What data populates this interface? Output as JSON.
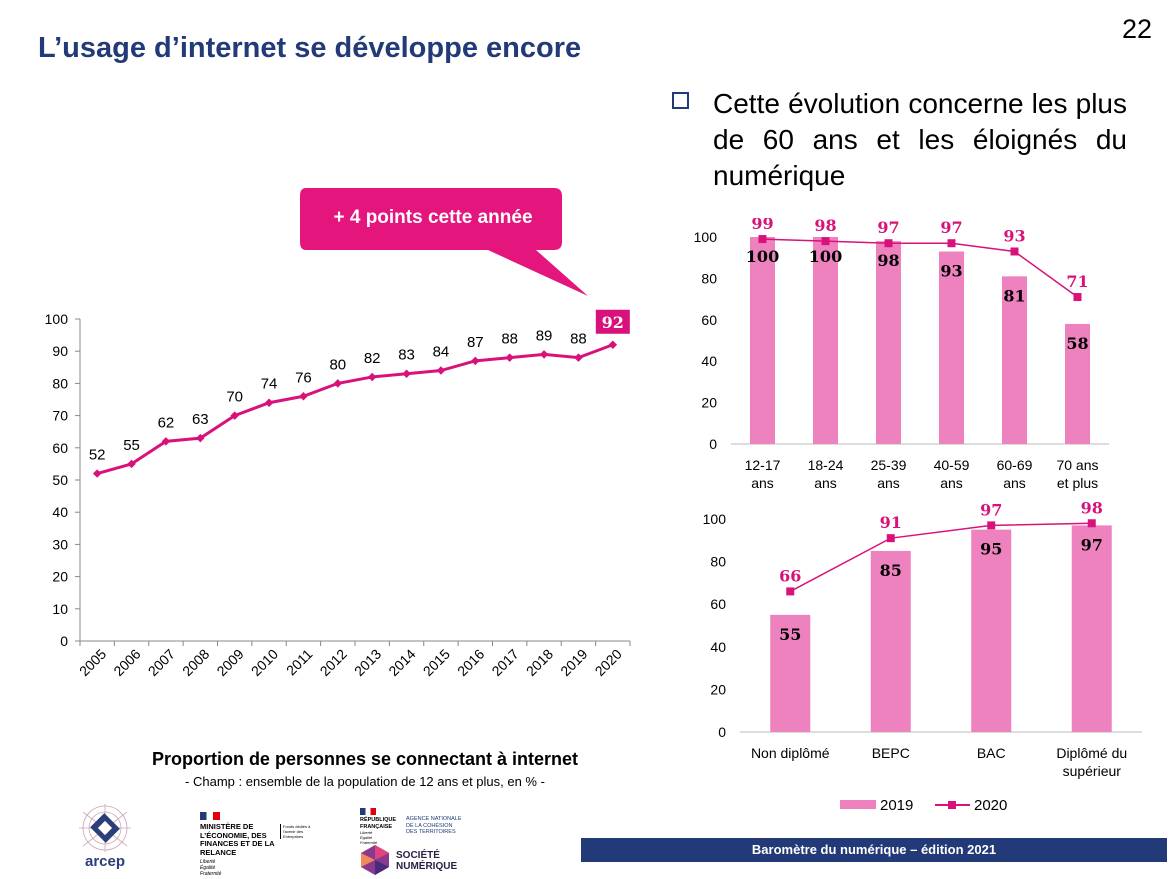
{
  "page": {
    "title": "L’usage d’internet se développe encore",
    "number": "22",
    "bullet": "Cette évolution concerne les plus de 60 ans et les éloignés du numérique",
    "callout": "+ 4 points cette année",
    "caption": "Proportion de personnes se connectant à internet",
    "caption_sub": "- Champ : ensemble de la population de 12 ans et plus, en % -",
    "footer": "Baromètre  du numérique – édition 2021"
  },
  "colors": {
    "title": "#233a78",
    "magenta": "#d8127a",
    "pink_bar": "#ee82bf",
    "axis": "#595959"
  },
  "logos": {
    "arcep": "arcep",
    "ministere": "MINISTÈRE DE L’ÉCONOMIE, DES FINANCES ET DE LA RELANCE",
    "ministere_motto": "Liberté Égalité Fraternité",
    "ministere_side": "Fonds dédiés à l'avenir des Entreprises",
    "rf": "RÉPUBLIQUE FRANÇAISE",
    "rf_motto": "Liberté Égalité Fraternité",
    "anct": "AGENCE NATIONALE DE LA COHÉSION DES TERRITOIRES",
    "societe": "SOCIÉTÉ NUMÉRIQUE"
  },
  "legend": {
    "s2019": "2019",
    "s2020": "2020"
  },
  "chart_data": [
    {
      "type": "line",
      "title": "Proportion de personnes se connectant à internet",
      "x": [
        "2005",
        "2006",
        "2007",
        "2008",
        "2009",
        "2010",
        "2011",
        "2012",
        "2013",
        "2014",
        "2015",
        "2016",
        "2017",
        "2018",
        "2019",
        "2020"
      ],
      "values": [
        52,
        55,
        62,
        63,
        70,
        74,
        76,
        80,
        82,
        83,
        84,
        87,
        88,
        89,
        88,
        92
      ],
      "ylim": [
        0,
        100
      ],
      "yticks": [
        "0",
        "10",
        "20",
        "30",
        "40",
        "50",
        "60",
        "70",
        "80",
        "90",
        "100"
      ],
      "highlight_last": true
    },
    {
      "type": "bar+line",
      "categories": [
        "12-17 ans",
        "18-24 ans",
        "25-39 ans",
        "40-59 ans",
        "60-69 ans",
        "70 ans et plus"
      ],
      "series": [
        {
          "name": "2019",
          "type": "bar",
          "values": [
            100,
            100,
            98,
            93,
            81,
            58
          ]
        },
        {
          "name": "2020",
          "type": "line",
          "values": [
            99,
            98,
            97,
            97,
            93,
            71
          ]
        }
      ],
      "ylim": [
        0,
        100
      ],
      "yticks": [
        "0",
        "20",
        "40",
        "60",
        "80",
        "100"
      ]
    },
    {
      "type": "bar+line",
      "categories": [
        "Non diplômé",
        "BEPC",
        "BAC",
        "Diplômé du supérieur"
      ],
      "series": [
        {
          "name": "2019",
          "type": "bar",
          "values": [
            55,
            85,
            95,
            97
          ]
        },
        {
          "name": "2020",
          "type": "line",
          "values": [
            66,
            91,
            97,
            98
          ]
        }
      ],
      "ylim": [
        0,
        100
      ],
      "yticks": [
        "0",
        "20",
        "40",
        "60",
        "80",
        "100"
      ]
    }
  ]
}
